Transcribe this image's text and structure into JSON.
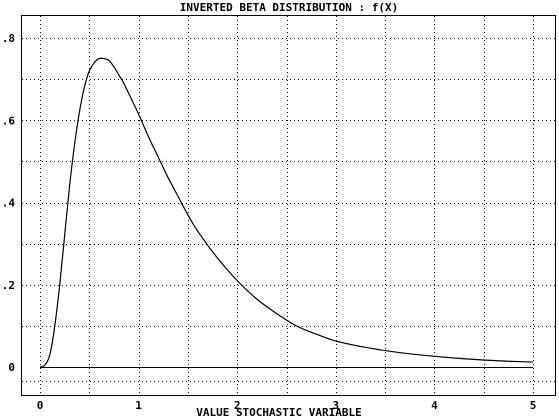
{
  "chart_data": {
    "type": "line",
    "title": "INVERTED BETA DISTRIBUTION : f(X)",
    "xlabel": "VALUE STOCHASTIC VARIABLE",
    "ylabel": "",
    "xlim": [
      0,
      5
    ],
    "ylim": [
      0,
      0.85
    ],
    "x_ticks": [
      0,
      1,
      2,
      3,
      4,
      5
    ],
    "x_tick_labels": [
      "0",
      "1",
      "2",
      "3",
      "4",
      "5"
    ],
    "y_ticks": [
      0,
      0.2,
      0.4,
      0.6,
      0.8
    ],
    "y_tick_labels": [
      "0",
      ".2",
      ".4",
      ".6",
      ".8"
    ],
    "grid": true,
    "series": [
      {
        "x": [
          0,
          0.05,
          0.1,
          0.15,
          0.2,
          0.25,
          0.3,
          0.35,
          0.4,
          0.45,
          0.5,
          0.55,
          0.6,
          0.65,
          0.7,
          0.75,
          0.8,
          0.85,
          0.9,
          0.95,
          1.0,
          1.1,
          1.2,
          1.3,
          1.4,
          1.5,
          1.6,
          1.8,
          2.0,
          2.2,
          2.4,
          2.6,
          2.8,
          3.0,
          3.25,
          3.5,
          3.75,
          4.0,
          4.25,
          4.5,
          4.75,
          5.0
        ],
        "y": [
          0,
          0.005,
          0.03,
          0.1,
          0.2,
          0.32,
          0.44,
          0.54,
          0.62,
          0.68,
          0.72,
          0.74,
          0.75,
          0.75,
          0.745,
          0.73,
          0.71,
          0.69,
          0.665,
          0.64,
          0.615,
          0.56,
          0.51,
          0.46,
          0.415,
          0.37,
          0.33,
          0.265,
          0.21,
          0.165,
          0.13,
          0.1,
          0.08,
          0.063,
          0.05,
          0.04,
          0.032,
          0.026,
          0.021,
          0.017,
          0.014,
          0.012
        ]
      }
    ]
  }
}
